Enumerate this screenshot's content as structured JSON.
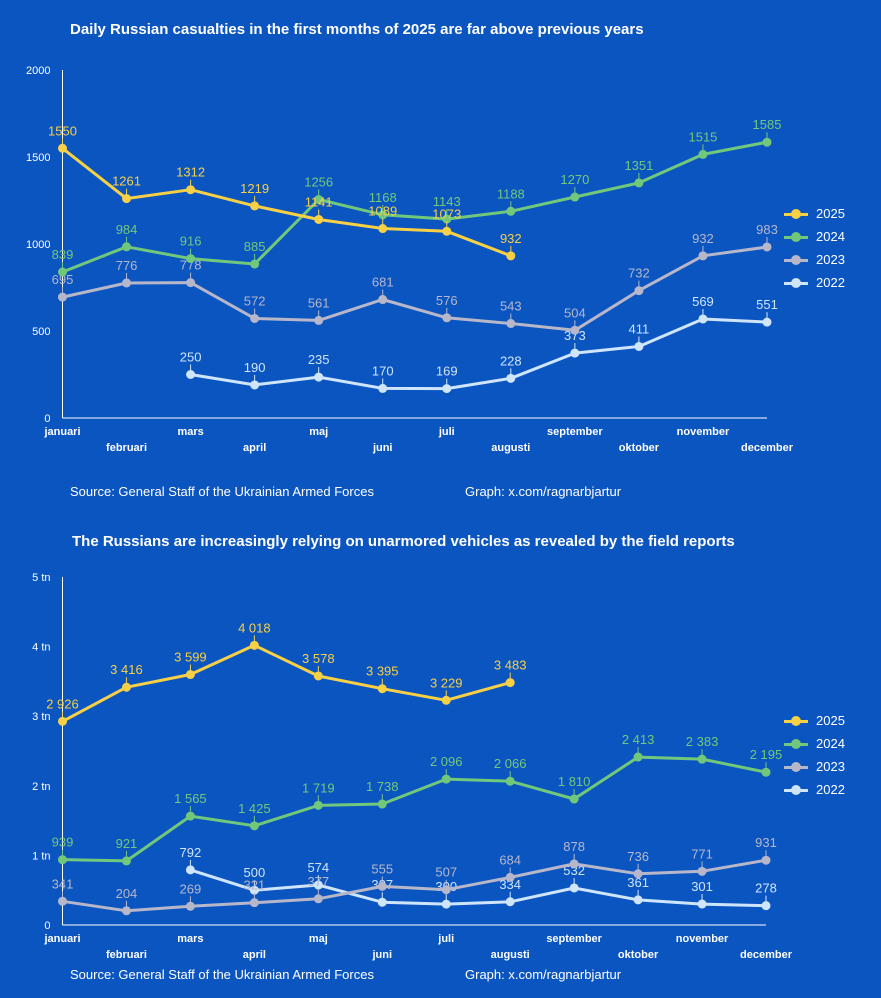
{
  "charts": [
    {
      "title": "Daily Russian casualties in the first months of 2025 are far above previous years",
      "source": "Source: General Staff of the Ukrainian Armed Forces",
      "credit": "Graph: x.com/ragnarbjartur"
    },
    {
      "title": "The Russians are increasingly relying on unarmored vehicles as revealed by the field reports",
      "source": "Source: General Staff of the Ukrainian Armed Forces",
      "credit": "Graph: x.com/ragnarbjartur"
    }
  ],
  "chart_data": [
    {
      "type": "line",
      "title": "Daily Russian casualties in the first months of 2025 are far above previous years",
      "categories": [
        "januari",
        "februari",
        "mars",
        "april",
        "maj",
        "juni",
        "juli",
        "augusti",
        "september",
        "oktober",
        "november",
        "december"
      ],
      "ylim": [
        0,
        2000
      ],
      "yticks": [
        0,
        500,
        1000,
        1500,
        2000
      ],
      "ytick_labels": [
        "0",
        "500",
        "1000",
        "1500",
        "2000"
      ],
      "grid": false,
      "legend_position": "right",
      "series": [
        {
          "name": "2025",
          "color": "#f7d046",
          "labels": [
            "1550",
            "1261",
            "1312",
            "1219",
            "1141",
            "1089",
            "1073",
            "932",
            null,
            null,
            null,
            null
          ],
          "values": [
            1550,
            1261,
            1312,
            1219,
            1141,
            1089,
            1073,
            932,
            null,
            null,
            null,
            null
          ]
        },
        {
          "name": "2024",
          "color": "#72c87a",
          "labels": [
            "839",
            "984",
            "916",
            "885",
            "1256",
            "1168",
            "1143",
            "1188",
            "1270",
            "1351",
            "1515",
            "1585"
          ],
          "values": [
            839,
            984,
            916,
            885,
            1256,
            1168,
            1143,
            1188,
            1270,
            1351,
            1515,
            1585
          ]
        },
        {
          "name": "2023",
          "color": "#b7b7c9",
          "labels": [
            "695",
            "776",
            "778",
            "572",
            "561",
            "681",
            "576",
            "543",
            "504",
            "732",
            "932",
            "983"
          ],
          "values": [
            695,
            776,
            778,
            572,
            561,
            681,
            576,
            543,
            504,
            732,
            932,
            983
          ]
        },
        {
          "name": "2022",
          "color": "#cfe5fb",
          "labels": [
            null,
            null,
            "250",
            "190",
            "235",
            "170",
            "169",
            "228",
            "373",
            "411",
            "569",
            "551"
          ],
          "values": [
            null,
            null,
            250,
            190,
            235,
            170,
            169,
            228,
            373,
            411,
            569,
            551
          ]
        }
      ]
    },
    {
      "type": "line",
      "title": "The Russians are increasingly relying on unarmored vehicles as revealed by the field reports",
      "categories": [
        "januari",
        "februari",
        "mars",
        "april",
        "maj",
        "juni",
        "juli",
        "augusti",
        "september",
        "oktober",
        "november",
        "december"
      ],
      "ylim": [
        0,
        5000
      ],
      "yticks": [
        0,
        1000,
        2000,
        3000,
        4000,
        5000
      ],
      "ytick_labels": [
        "0",
        "1 tn",
        "2 tn",
        "3 tn",
        "4 tn",
        "5 tn"
      ],
      "grid": false,
      "legend_position": "right",
      "series": [
        {
          "name": "2025",
          "color": "#f7d046",
          "labels": [
            "2 926",
            "3 416",
            "3 599",
            "4 018",
            "3 578",
            "3 395",
            "3 229",
            "3 483",
            null,
            null,
            null,
            null
          ],
          "values": [
            2926,
            3416,
            3599,
            4018,
            3578,
            3395,
            3229,
            3483,
            null,
            null,
            null,
            null
          ]
        },
        {
          "name": "2024",
          "color": "#72c87a",
          "labels": [
            "939",
            "921",
            "1 565",
            "1 425",
            "1 719",
            "1 738",
            "2 096",
            "2 066",
            "1 810",
            "2 413",
            "2 383",
            "2 195"
          ],
          "values": [
            939,
            921,
            1565,
            1425,
            1719,
            1738,
            2096,
            2066,
            1810,
            2413,
            2383,
            2195
          ]
        },
        {
          "name": "2023",
          "color": "#b7b7c9",
          "labels": [
            "341",
            "204",
            "269",
            "321",
            "377",
            "555",
            "507",
            "684",
            "878",
            "736",
            "771",
            "931"
          ],
          "values": [
            341,
            204,
            269,
            321,
            377,
            555,
            507,
            684,
            878,
            736,
            771,
            931
          ]
        },
        {
          "name": "2022",
          "color": "#cfe5fb",
          "labels": [
            null,
            null,
            "792",
            "500",
            "574",
            "327",
            "300",
            "334",
            "532",
            "361",
            "301",
            "278"
          ],
          "values": [
            null,
            null,
            792,
            500,
            574,
            327,
            300,
            334,
            532,
            361,
            301,
            278
          ]
        }
      ]
    }
  ]
}
